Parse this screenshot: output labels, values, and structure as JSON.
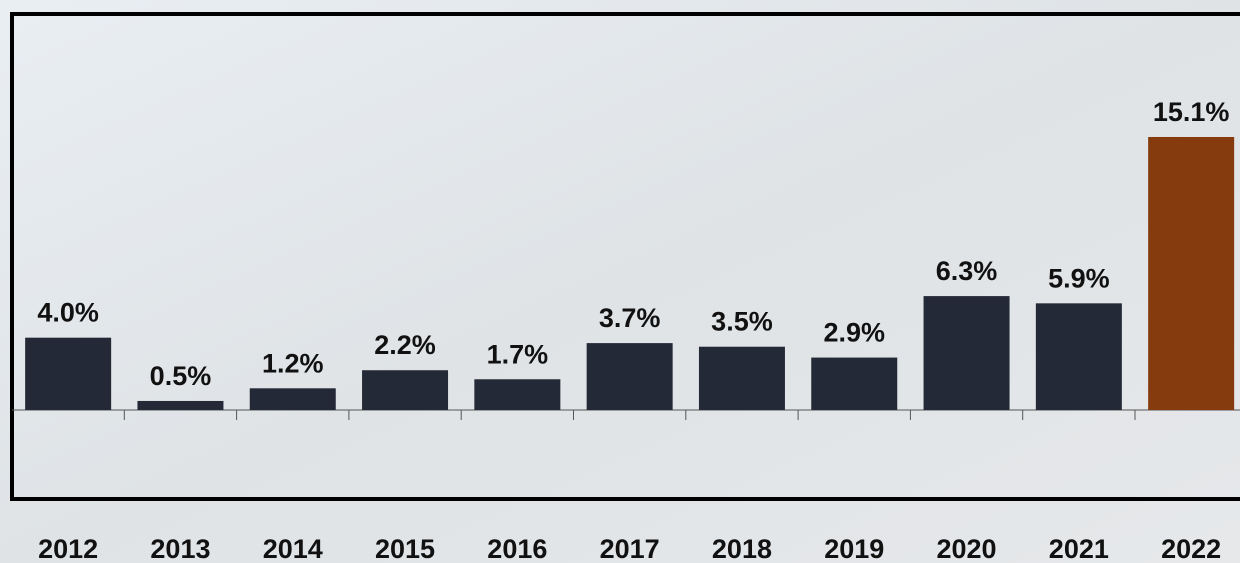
{
  "chart_data": {
    "type": "bar",
    "categories": [
      "2012",
      "2013",
      "2014",
      "2015",
      "2016",
      "2017",
      "2018",
      "2019",
      "2020",
      "2021",
      "2022"
    ],
    "values": [
      4.0,
      0.5,
      1.2,
      2.2,
      1.7,
      3.7,
      3.5,
      2.9,
      6.3,
      5.9,
      15.1
    ],
    "value_labels": [
      "4.0%",
      "0.5%",
      "1.2%",
      "2.2%",
      "1.7%",
      "3.7%",
      "3.5%",
      "2.9%",
      "6.3%",
      "5.9%",
      "15.1%"
    ],
    "colors": [
      "#232936",
      "#232936",
      "#232936",
      "#232936",
      "#232936",
      "#232936",
      "#232936",
      "#232936",
      "#232936",
      "#232936",
      "#863b0e"
    ]
  }
}
